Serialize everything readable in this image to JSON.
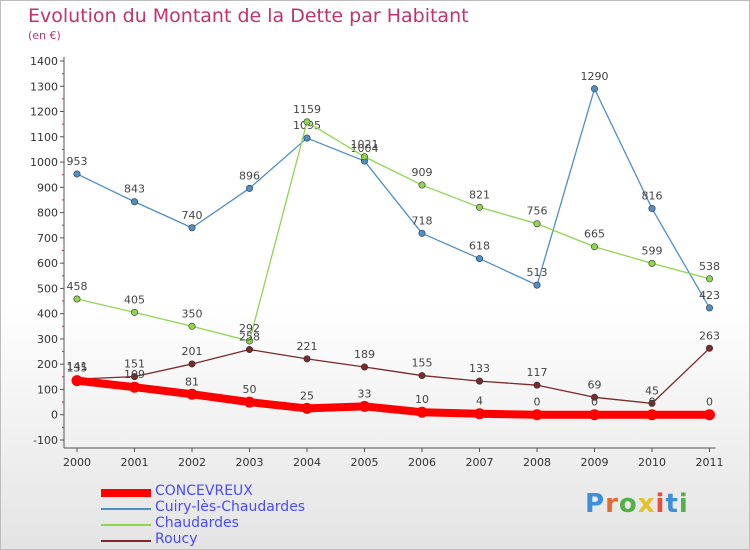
{
  "title": "Evolution du Montant de la Dette par Habitant",
  "subtitle": "(en €)",
  "logo": {
    "text": "Proxiti",
    "letter_colors": [
      "#3d8fd8",
      "#e56b2e",
      "#55b04a",
      "#e4c12a",
      "#e64d3a",
      "#3d8fd8",
      "#55b04a"
    ]
  },
  "chart_data": {
    "type": "line",
    "title": "Evolution du Montant de la Dette par Habitant",
    "ylabel": "(en €)",
    "x": [
      "2000",
      "2001",
      "2002",
      "2003",
      "2004",
      "2005",
      "2006",
      "2007",
      "2008",
      "2009",
      "2010",
      "2011"
    ],
    "ylim": [
      -100,
      1400
    ],
    "yticks": [
      "-100",
      "0",
      "100",
      "200",
      "300",
      "400",
      "500",
      "600",
      "700",
      "800",
      "900",
      "1000",
      "1100",
      "1200",
      "1300",
      "1400"
    ],
    "grid": false,
    "legend": "bottom-left",
    "series": [
      {
        "name": "CONCEVREUX",
        "color": "#ff0000",
        "values": [
          135,
          109,
          81,
          50,
          25,
          33,
          10,
          4,
          0,
          0,
          0,
          0
        ],
        "labels": [
          "135",
          "109",
          "81",
          "50",
          "25",
          "33",
          "10",
          "4",
          "0",
          "0",
          "0",
          "0"
        ]
      },
      {
        "name": "Cuiry-lès-Chaudardes",
        "color": "#4e8fc9",
        "values": [
          953,
          843,
          740,
          896,
          1095,
          1004,
          718,
          618,
          513,
          1290,
          816,
          423
        ],
        "labels": [
          "953",
          "843",
          "740",
          "896",
          "1095",
          "1004",
          "718",
          "618",
          "513",
          "1290",
          "816",
          "423"
        ]
      },
      {
        "name": "Chaudardes",
        "color": "#8fd64f",
        "values": [
          458,
          405,
          350,
          292,
          1159,
          1021,
          909,
          821,
          756,
          665,
          599,
          538
        ],
        "labels": [
          "458",
          "405",
          "350",
          "292",
          "1159",
          "1021",
          "909",
          "821",
          "756",
          "665",
          "599",
          "538"
        ]
      },
      {
        "name": "Roucy",
        "color": "#7a2a2a",
        "values": [
          141,
          151,
          201,
          258,
          221,
          189,
          155,
          133,
          117,
          69,
          45,
          263
        ],
        "labels": [
          "141",
          "151",
          "201",
          "258",
          "221",
          "189",
          "155",
          "133",
          "117",
          "69",
          "45",
          "263"
        ]
      }
    ]
  }
}
